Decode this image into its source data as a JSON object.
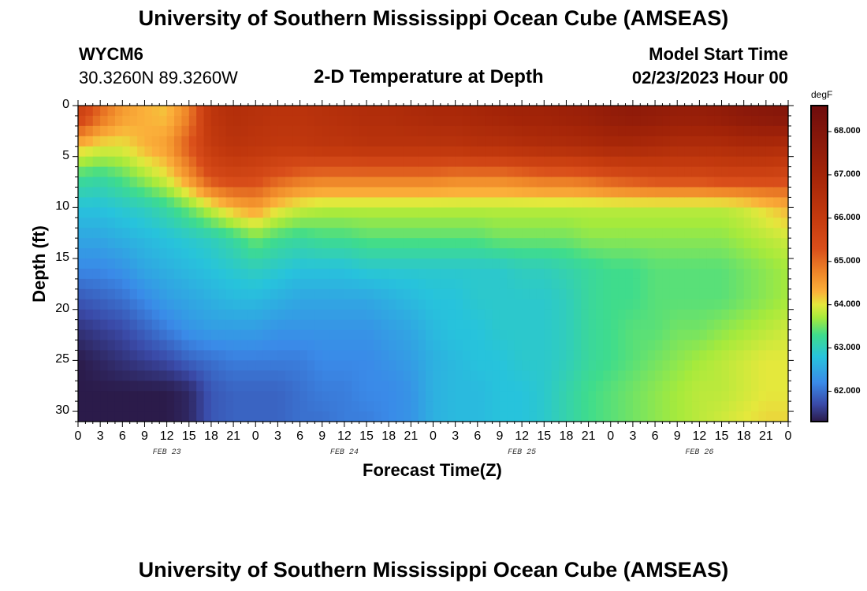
{
  "header": {
    "title": "University of Southern Mississippi Ocean Cube (AMSEAS)",
    "station_id": "WYCM6",
    "coordinates": "30.3260N  89.3260W",
    "plot_title": "2-D Temperature at Depth",
    "model_start_label": "Model Start Time",
    "model_start_value": "02/23/2023 Hour 00"
  },
  "footer": {
    "title": "University of Southern Mississippi Ocean Cube (AMSEAS)"
  },
  "chart_data": {
    "type": "heatmap",
    "title": "2-D Temperature at Depth",
    "xlabel": "Forecast Time(Z)",
    "ylabel": "Depth (ft)",
    "x_tick_labels": [
      "0",
      "3",
      "6",
      "9",
      "12",
      "15",
      "18",
      "21",
      "0",
      "3",
      "6",
      "9",
      "12",
      "15",
      "18",
      "21",
      "0",
      "3",
      "6",
      "9",
      "12",
      "15",
      "18",
      "21",
      "0",
      "3",
      "6",
      "9",
      "12",
      "15",
      "18",
      "21",
      "0"
    ],
    "x_range_hours": [
      0,
      96
    ],
    "day_labels": [
      {
        "label": "FEB 23",
        "center_hour": 12
      },
      {
        "label": "FEB 24",
        "center_hour": 36
      },
      {
        "label": "FEB 25",
        "center_hour": 60
      },
      {
        "label": "FEB 26",
        "center_hour": 84
      }
    ],
    "y_ticks": [
      0,
      5,
      10,
      15,
      20,
      25,
      30
    ],
    "ylim": [
      0,
      31
    ],
    "y_inverted": true,
    "colorbar": {
      "unit": "degF",
      "range": [
        61.3,
        68.6
      ],
      "tick_labels": [
        "68.000",
        "67.000",
        "66.000",
        "65.000",
        "64.000",
        "63.000",
        "62.000"
      ],
      "tick_values": [
        68,
        67,
        66,
        65,
        64,
        63,
        62
      ],
      "stops": [
        {
          "v": 61.3,
          "color": "#2b1b4a"
        },
        {
          "v": 61.7,
          "color": "#3a4aa8"
        },
        {
          "v": 62.2,
          "color": "#3a8ae8"
        },
        {
          "v": 62.8,
          "color": "#27c3dc"
        },
        {
          "v": 63.3,
          "color": "#3fdc8c"
        },
        {
          "v": 63.7,
          "color": "#a6ea3c"
        },
        {
          "v": 64.0,
          "color": "#e4e83c"
        },
        {
          "v": 64.3,
          "color": "#fbb03a"
        },
        {
          "v": 64.7,
          "color": "#f08a2a"
        },
        {
          "v": 65.3,
          "color": "#d94e1a"
        },
        {
          "v": 66.0,
          "color": "#c43a0e"
        },
        {
          "v": 67.0,
          "color": "#a32408"
        },
        {
          "v": 68.6,
          "color": "#6e0c0c"
        }
      ]
    },
    "series": [
      {
        "x": [
          0,
          3,
          6,
          9,
          12,
          15,
          18,
          21,
          24,
          27,
          30,
          33,
          36,
          39,
          42,
          45,
          48,
          51,
          54,
          57,
          60,
          63,
          66,
          69,
          72,
          75,
          78,
          81,
          84,
          87,
          90,
          93,
          96
        ],
        "y": 1,
        "values": [
          65.8,
          65.0,
          64.5,
          64.3,
          64.2,
          64.8,
          66.2,
          66.5,
          66.4,
          66.3,
          66.3,
          66.4,
          66.5,
          66.6,
          66.6,
          66.7,
          66.8,
          66.8,
          66.9,
          67.0,
          67.1,
          67.1,
          67.2,
          67.3,
          67.5,
          67.6,
          67.5,
          67.4,
          67.4,
          67.5,
          67.7,
          67.8,
          67.9
        ]
      },
      {
        "x": [
          0,
          3,
          6,
          9,
          12,
          15,
          18,
          21,
          24,
          27,
          30,
          33,
          36,
          39,
          42,
          45,
          48,
          51,
          54,
          57,
          60,
          63,
          66,
          69,
          72,
          75,
          78,
          81,
          84,
          87,
          90,
          93,
          96
        ],
        "y": 4,
        "values": [
          64.2,
          64.0,
          64.0,
          64.3,
          64.5,
          65.2,
          66.0,
          66.3,
          66.2,
          66.1,
          66.1,
          66.2,
          66.2,
          66.3,
          66.3,
          66.3,
          66.3,
          66.3,
          66.4,
          66.4,
          66.5,
          66.6,
          66.6,
          66.7,
          66.8,
          66.8,
          66.7,
          66.6,
          66.6,
          66.6,
          66.7,
          66.7,
          66.6
        ]
      },
      {
        "x": [
          0,
          3,
          6,
          9,
          12,
          15,
          18,
          21,
          24,
          27,
          30,
          33,
          36,
          39,
          42,
          45,
          48,
          51,
          54,
          57,
          60,
          63,
          66,
          69,
          72,
          75,
          78,
          81,
          84,
          87,
          90,
          93,
          96
        ],
        "y": 7,
        "values": [
          63.3,
          63.2,
          63.4,
          63.7,
          64.0,
          64.6,
          65.4,
          65.6,
          65.5,
          65.2,
          65.0,
          64.9,
          64.9,
          64.9,
          64.9,
          64.9,
          64.9,
          64.8,
          64.8,
          64.8,
          64.9,
          65.0,
          65.0,
          65.1,
          65.3,
          65.4,
          65.5,
          65.5,
          65.5,
          65.6,
          65.6,
          65.6,
          65.5
        ]
      },
      {
        "x": [
          0,
          3,
          6,
          9,
          12,
          15,
          18,
          21,
          24,
          27,
          30,
          33,
          36,
          39,
          42,
          45,
          48,
          51,
          54,
          57,
          60,
          63,
          66,
          69,
          72,
          75,
          78,
          81,
          84,
          87,
          90,
          93,
          96
        ],
        "y": 10,
        "values": [
          62.8,
          62.8,
          62.9,
          63.0,
          63.2,
          63.5,
          63.9,
          64.3,
          64.5,
          64.1,
          63.9,
          63.8,
          63.8,
          63.8,
          63.8,
          63.8,
          63.8,
          63.8,
          63.8,
          63.8,
          63.8,
          63.8,
          63.8,
          63.8,
          63.8,
          63.8,
          63.8,
          63.8,
          63.8,
          63.8,
          63.9,
          64.1,
          64.3
        ]
      },
      {
        "x": [
          0,
          3,
          6,
          9,
          12,
          15,
          18,
          21,
          24,
          27,
          30,
          33,
          36,
          39,
          42,
          45,
          48,
          51,
          54,
          57,
          60,
          63,
          66,
          69,
          72,
          75,
          78,
          81,
          84,
          87,
          90,
          93,
          96
        ],
        "y": 13,
        "values": [
          62.5,
          62.5,
          62.6,
          62.7,
          62.8,
          62.9,
          63.0,
          63.2,
          63.5,
          63.3,
          63.2,
          63.3,
          63.3,
          63.4,
          63.4,
          63.4,
          63.4,
          63.4,
          63.4,
          63.5,
          63.5,
          63.5,
          63.5,
          63.6,
          63.6,
          63.6,
          63.6,
          63.6,
          63.6,
          63.6,
          63.7,
          63.8,
          63.9
        ]
      },
      {
        "x": [
          0,
          3,
          6,
          9,
          12,
          15,
          18,
          21,
          24,
          27,
          30,
          33,
          36,
          39,
          42,
          45,
          48,
          51,
          54,
          57,
          60,
          63,
          66,
          69,
          72,
          75,
          78,
          81,
          84,
          87,
          90,
          93,
          96
        ],
        "y": 16,
        "values": [
          62.2,
          62.2,
          62.3,
          62.5,
          62.6,
          62.7,
          62.8,
          62.9,
          63.0,
          62.9,
          62.8,
          62.8,
          62.8,
          62.9,
          62.9,
          62.9,
          62.9,
          62.9,
          62.9,
          62.9,
          63.0,
          63.0,
          63.1,
          63.2,
          63.3,
          63.3,
          63.4,
          63.4,
          63.4,
          63.4,
          63.5,
          63.6,
          63.7
        ]
      },
      {
        "x": [
          0,
          3,
          6,
          9,
          12,
          15,
          18,
          21,
          24,
          27,
          30,
          33,
          36,
          39,
          42,
          45,
          48,
          51,
          54,
          57,
          60,
          63,
          66,
          69,
          72,
          75,
          78,
          81,
          84,
          87,
          90,
          93,
          96
        ],
        "y": 19,
        "values": [
          61.8,
          61.9,
          62.0,
          62.2,
          62.4,
          62.5,
          62.6,
          62.7,
          62.7,
          62.6,
          62.5,
          62.5,
          62.5,
          62.5,
          62.6,
          62.7,
          62.8,
          62.8,
          62.9,
          62.9,
          62.9,
          62.9,
          63.0,
          63.2,
          63.3,
          63.3,
          63.4,
          63.4,
          63.4,
          63.4,
          63.5,
          63.6,
          63.7
        ]
      },
      {
        "x": [
          0,
          3,
          6,
          9,
          12,
          15,
          18,
          21,
          24,
          27,
          30,
          33,
          36,
          39,
          42,
          45,
          48,
          51,
          54,
          57,
          60,
          63,
          66,
          69,
          72,
          75,
          78,
          81,
          84,
          87,
          90,
          93,
          96
        ],
        "y": 22,
        "values": [
          61.5,
          61.6,
          61.7,
          61.9,
          62.1,
          62.3,
          62.4,
          62.4,
          62.4,
          62.3,
          62.3,
          62.3,
          62.3,
          62.3,
          62.4,
          62.5,
          62.7,
          62.8,
          62.8,
          62.9,
          62.9,
          62.9,
          63.0,
          63.2,
          63.3,
          63.4,
          63.4,
          63.5,
          63.5,
          63.6,
          63.7,
          63.8,
          63.9
        ]
      },
      {
        "x": [
          0,
          3,
          6,
          9,
          12,
          15,
          18,
          21,
          24,
          27,
          30,
          33,
          36,
          39,
          42,
          45,
          48,
          51,
          54,
          57,
          60,
          63,
          66,
          69,
          72,
          75,
          78,
          81,
          84,
          87,
          90,
          93,
          96
        ],
        "y": 25,
        "values": [
          61.3,
          61.4,
          61.5,
          61.6,
          61.7,
          61.9,
          62.0,
          62.1,
          62.1,
          62.1,
          62.1,
          62.2,
          62.2,
          62.2,
          62.3,
          62.4,
          62.6,
          62.7,
          62.8,
          62.8,
          62.9,
          62.9,
          63.0,
          63.2,
          63.3,
          63.4,
          63.5,
          63.6,
          63.7,
          63.8,
          63.9,
          64.0,
          64.0
        ]
      },
      {
        "x": [
          0,
          3,
          6,
          9,
          12,
          15,
          18,
          21,
          24,
          27,
          30,
          33,
          36,
          39,
          42,
          45,
          48,
          51,
          54,
          57,
          60,
          63,
          66,
          69,
          72,
          75,
          78,
          81,
          84,
          87,
          90,
          93,
          96
        ],
        "y": 28,
        "values": [
          61.3,
          61.3,
          61.3,
          61.3,
          61.3,
          61.4,
          61.8,
          61.9,
          61.9,
          61.9,
          62.0,
          62.1,
          62.1,
          62.2,
          62.2,
          62.3,
          62.6,
          62.7,
          62.7,
          62.8,
          62.8,
          62.9,
          63.1,
          63.3,
          63.4,
          63.5,
          63.6,
          63.7,
          63.8,
          63.8,
          63.9,
          64.0,
          64.0
        ]
      },
      {
        "x": [
          0,
          3,
          6,
          9,
          12,
          15,
          18,
          21,
          24,
          27,
          30,
          33,
          36,
          39,
          42,
          45,
          48,
          51,
          54,
          57,
          60,
          63,
          66,
          69,
          72,
          75,
          78,
          81,
          84,
          87,
          90,
          93,
          96
        ],
        "y": 31,
        "values": [
          61.3,
          61.3,
          61.3,
          61.3,
          61.3,
          61.4,
          61.8,
          61.9,
          61.9,
          61.9,
          62.0,
          62.0,
          62.1,
          62.1,
          62.2,
          62.3,
          62.6,
          62.7,
          62.7,
          62.8,
          62.8,
          62.9,
          63.1,
          63.3,
          63.4,
          63.5,
          63.6,
          63.7,
          63.8,
          63.9,
          64.0,
          64.1,
          64.1
        ]
      }
    ]
  }
}
